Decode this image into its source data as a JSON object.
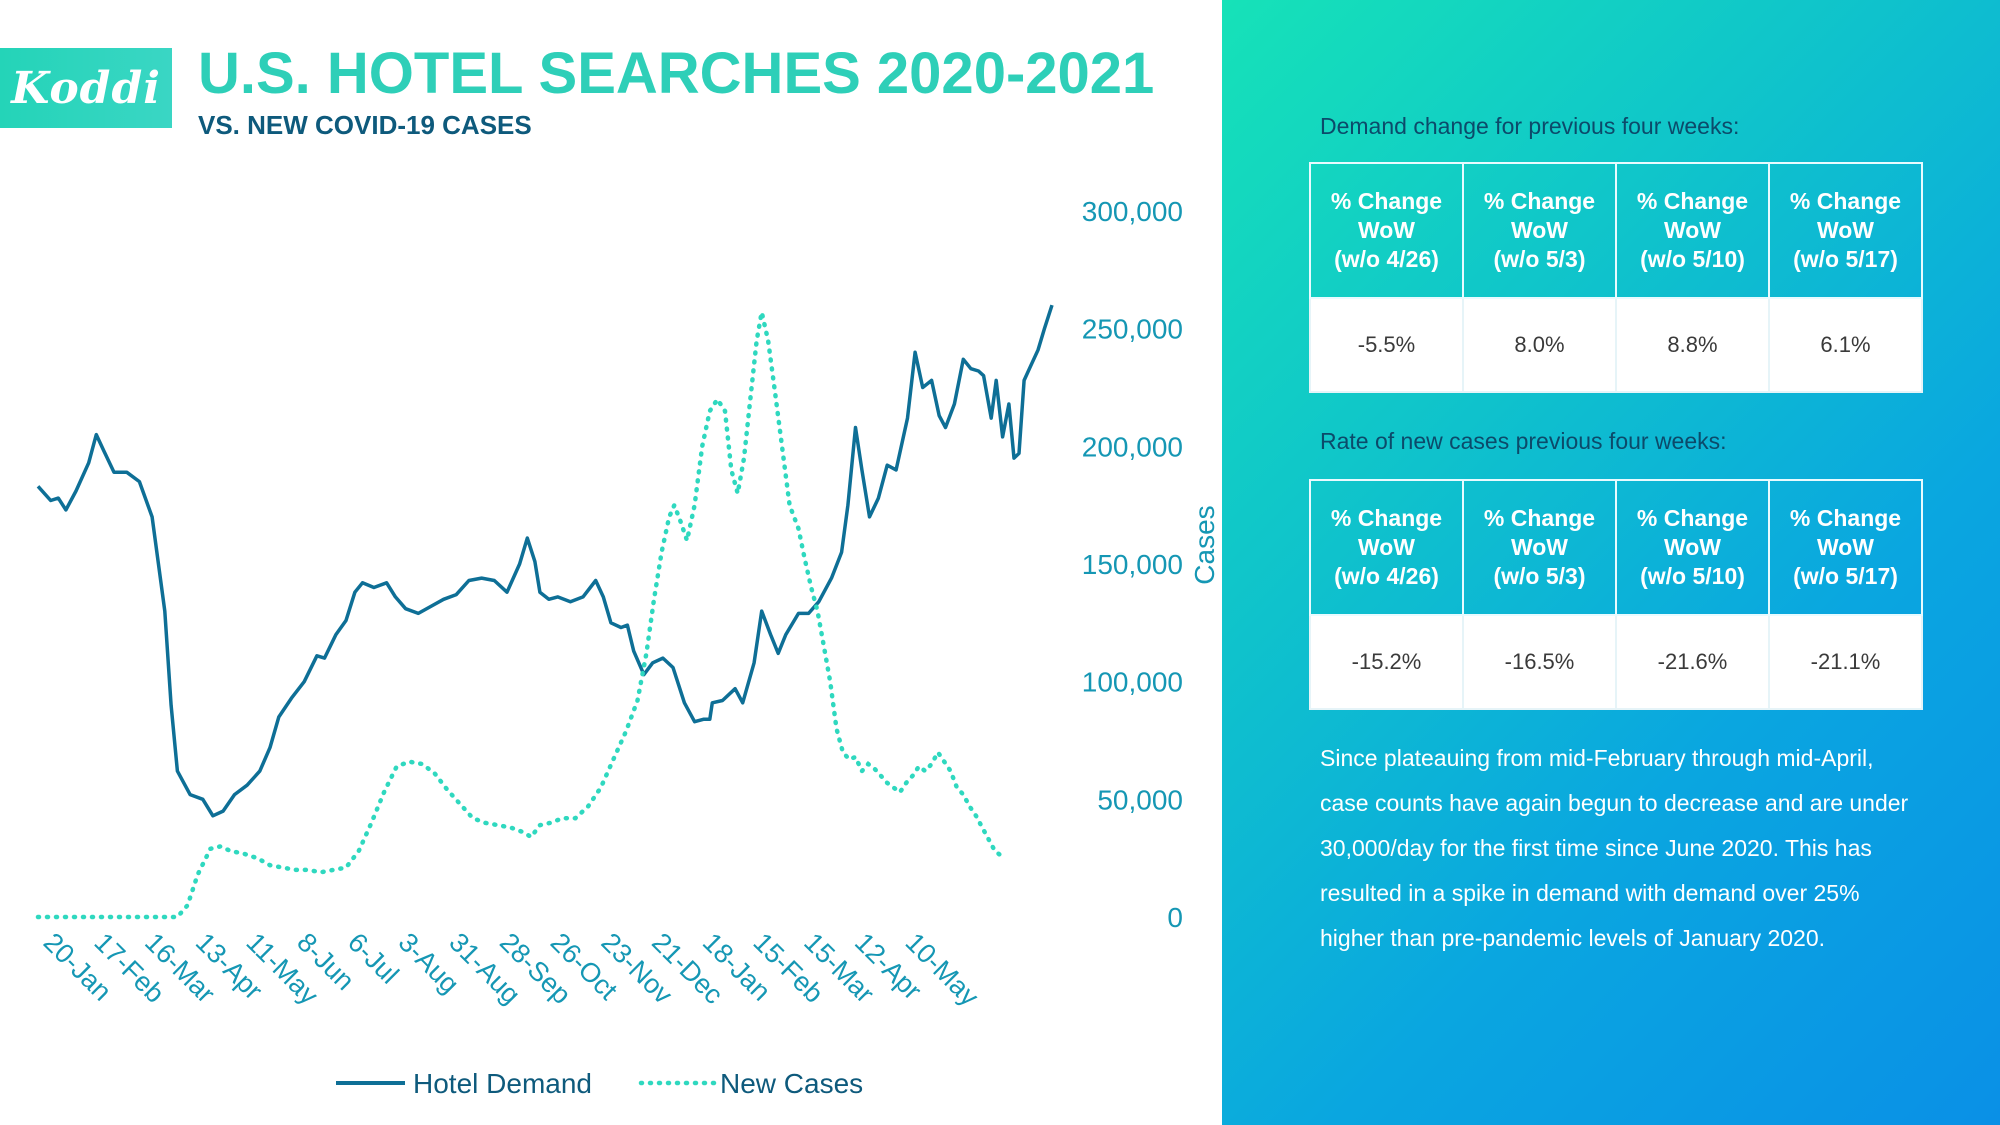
{
  "logo": {
    "text": "Koddi"
  },
  "header": {
    "title": "U.S. HOTEL SEARCHES 2020-2021",
    "subtitle": "VS. NEW COVID-19 CASES"
  },
  "colors": {
    "demand": "#0e6f96",
    "cases": "#2fd8bf",
    "title": "#2ecfb8",
    "axis_text": "#1597b4"
  },
  "chart_data": {
    "type": "line",
    "title": "U.S. HOTEL SEARCHES 2020-2021",
    "subtitle": "VS. NEW COVID-19 CASES",
    "xlabel": "",
    "ylabel": "Cases",
    "ylim": [
      0,
      300000
    ],
    "yticks": [
      0,
      50000,
      100000,
      150000,
      200000,
      250000,
      300000
    ],
    "ytick_labels": [
      "0",
      "50,000",
      "100,000",
      "150,000",
      "200,000",
      "250,000",
      "300,000"
    ],
    "x_tick_labels": [
      "20-Jan",
      "17-Feb",
      "16-Mar",
      "13-Apr",
      "11-May",
      "8-Jun",
      "6-Jul",
      "3-Aug",
      "31-Aug",
      "28-Sep",
      "26-Oct",
      "23-Nov",
      "21-Dec",
      "18-Jan",
      "15-Feb",
      "15-Mar",
      "12-Apr",
      "10-May"
    ],
    "x_range_weeks": [
      0,
      69
    ],
    "legend_position": "bottom",
    "grid": false,
    "series": [
      {
        "name": "Hotel Demand",
        "style": "solid",
        "points": [
          [
            0,
            183000
          ],
          [
            1,
            177000
          ],
          [
            1.6,
            178000
          ],
          [
            2.2,
            173000
          ],
          [
            3,
            181000
          ],
          [
            4,
            193000
          ],
          [
            4.6,
            205000
          ],
          [
            5.2,
            198000
          ],
          [
            6,
            189000
          ],
          [
            7,
            189000
          ],
          [
            8,
            185000
          ],
          [
            9,
            170000
          ],
          [
            10,
            130000
          ],
          [
            10.5,
            90000
          ],
          [
            11,
            62000
          ],
          [
            12,
            52000
          ],
          [
            13,
            50000
          ],
          [
            13.8,
            43000
          ],
          [
            14.6,
            45000
          ],
          [
            15.5,
            52000
          ],
          [
            16.5,
            56000
          ],
          [
            17.5,
            62000
          ],
          [
            18.3,
            72000
          ],
          [
            19,
            85000
          ],
          [
            20,
            93000
          ],
          [
            21,
            100000
          ],
          [
            22,
            111000
          ],
          [
            22.6,
            110000
          ],
          [
            23.5,
            120000
          ],
          [
            24.3,
            126000
          ],
          [
            25,
            138000
          ],
          [
            25.6,
            142000
          ],
          [
            26.5,
            140000
          ],
          [
            27.5,
            142000
          ],
          [
            28.2,
            136000
          ],
          [
            29,
            131000
          ],
          [
            30,
            129000
          ],
          [
            31,
            132000
          ],
          [
            32,
            135000
          ],
          [
            33,
            137000
          ],
          [
            34,
            143000
          ],
          [
            35,
            144000
          ],
          [
            36,
            143000
          ],
          [
            37,
            138000
          ],
          [
            38,
            150000
          ],
          [
            38.6,
            161000
          ],
          [
            39.2,
            151000
          ],
          [
            39.6,
            138000
          ],
          [
            40.3,
            135000
          ],
          [
            41,
            136000
          ],
          [
            42,
            134000
          ],
          [
            43,
            136000
          ],
          [
            44,
            143000
          ],
          [
            44.6,
            136000
          ],
          [
            45.2,
            125000
          ],
          [
            46,
            123000
          ],
          [
            46.5,
            124000
          ],
          [
            47,
            113000
          ],
          [
            47.8,
            103000
          ],
          [
            48.5,
            108000
          ],
          [
            49.3,
            110000
          ],
          [
            50.1,
            106000
          ],
          [
            51,
            91000
          ],
          [
            51.8,
            83000
          ],
          [
            52.5,
            84000
          ],
          [
            53,
            84000
          ],
          [
            53.2,
            91000
          ],
          [
            54,
            92000
          ],
          [
            55,
            97000
          ],
          [
            55.6,
            91000
          ],
          [
            56.5,
            108000
          ],
          [
            57.1,
            130000
          ],
          [
            57.8,
            120000
          ],
          [
            58.4,
            112000
          ],
          [
            59,
            120000
          ],
          [
            60,
            129000
          ],
          [
            60.8,
            129000
          ],
          [
            61.6,
            134000
          ],
          [
            62.6,
            144000
          ],
          [
            63.4,
            155000
          ],
          [
            63.9,
            175000
          ],
          [
            64.5,
            208000
          ],
          [
            65,
            190000
          ],
          [
            65.6,
            170000
          ],
          [
            66.3,
            178000
          ],
          [
            67,
            192000
          ],
          [
            67.7,
            190000
          ],
          [
            68.6,
            212000
          ],
          [
            69.2,
            240000
          ],
          [
            69.8,
            225000
          ],
          [
            70.5,
            228000
          ],
          [
            71.1,
            213000
          ],
          [
            71.6,
            208000
          ],
          [
            72.3,
            218000
          ],
          [
            73,
            237000
          ],
          [
            73.6,
            233000
          ],
          [
            74.2,
            232000
          ],
          [
            74.6,
            230000
          ],
          [
            75.2,
            212000
          ],
          [
            75.6,
            228000
          ],
          [
            76.1,
            204000
          ],
          [
            76.6,
            218000
          ],
          [
            77,
            195000
          ],
          [
            77.4,
            197000
          ],
          [
            77.8,
            228000
          ],
          [
            78.3,
            234000
          ],
          [
            78.9,
            241000
          ],
          [
            79.4,
            250000
          ],
          [
            80,
            260000
          ]
        ]
      },
      {
        "name": "New Cases",
        "style": "dotted",
        "points": [
          [
            0,
            0
          ],
          [
            3,
            0
          ],
          [
            6,
            0
          ],
          [
            9,
            0
          ],
          [
            11,
            0
          ],
          [
            11.8,
            5000
          ],
          [
            12.6,
            18000
          ],
          [
            13.6,
            29000
          ],
          [
            14.4,
            30000
          ],
          [
            15.2,
            28000
          ],
          [
            16.2,
            27000
          ],
          [
            17.3,
            25000
          ],
          [
            18.3,
            22000
          ],
          [
            19.3,
            21000
          ],
          [
            20.3,
            20000
          ],
          [
            21.3,
            20000
          ],
          [
            22.3,
            19000
          ],
          [
            23.3,
            20000
          ],
          [
            24.3,
            21000
          ],
          [
            25.3,
            28000
          ],
          [
            26.3,
            40000
          ],
          [
            27.3,
            53000
          ],
          [
            28.3,
            64000
          ],
          [
            29.3,
            66000
          ],
          [
            30.3,
            65000
          ],
          [
            31.3,
            61000
          ],
          [
            32.3,
            54000
          ],
          [
            33.3,
            48000
          ],
          [
            34.3,
            42000
          ],
          [
            35.3,
            40000
          ],
          [
            36.3,
            39000
          ],
          [
            37.3,
            38000
          ],
          [
            38.3,
            36000
          ],
          [
            38.9,
            34000
          ],
          [
            39.6,
            39000
          ],
          [
            40.4,
            40000
          ],
          [
            41.4,
            42000
          ],
          [
            42.4,
            42000
          ],
          [
            43.4,
            47000
          ],
          [
            44.4,
            55000
          ],
          [
            45.4,
            67000
          ],
          [
            46.4,
            79000
          ],
          [
            47.3,
            92000
          ],
          [
            48,
            112000
          ],
          [
            48.6,
            135000
          ],
          [
            49.2,
            155000
          ],
          [
            49.8,
            170000
          ],
          [
            50.2,
            175000
          ],
          [
            50.7,
            168000
          ],
          [
            51.2,
            160000
          ],
          [
            51.8,
            175000
          ],
          [
            52.4,
            200000
          ],
          [
            53,
            215000
          ],
          [
            53.6,
            220000
          ],
          [
            54.2,
            215000
          ],
          [
            54.7,
            190000
          ],
          [
            55.2,
            180000
          ],
          [
            55.7,
            195000
          ],
          [
            56.2,
            220000
          ],
          [
            56.7,
            245000
          ],
          [
            57.1,
            257000
          ],
          [
            57.6,
            245000
          ],
          [
            58.1,
            225000
          ],
          [
            58.7,
            200000
          ],
          [
            59.3,
            175000
          ],
          [
            60,
            165000
          ],
          [
            60.5,
            152000
          ],
          [
            61,
            140000
          ],
          [
            61.5,
            130000
          ],
          [
            62,
            115000
          ],
          [
            62.5,
            100000
          ],
          [
            63,
            80000
          ],
          [
            63.5,
            70000
          ],
          [
            64,
            67000
          ],
          [
            64.5,
            68000
          ],
          [
            65,
            62000
          ],
          [
            65.5,
            65000
          ],
          [
            66,
            63000
          ],
          [
            66.5,
            60000
          ],
          [
            67,
            57000
          ],
          [
            67.5,
            55000
          ],
          [
            68,
            53000
          ],
          [
            68.5,
            57000
          ],
          [
            69,
            60000
          ],
          [
            69.5,
            64000
          ],
          [
            70,
            62000
          ],
          [
            70.5,
            65000
          ],
          [
            71,
            70000
          ],
          [
            71.5,
            66000
          ],
          [
            72,
            62000
          ],
          [
            72.5,
            55000
          ],
          [
            73,
            52000
          ],
          [
            73.5,
            47000
          ],
          [
            74,
            43000
          ],
          [
            74.5,
            38000
          ],
          [
            75,
            33000
          ],
          [
            75.5,
            28000
          ],
          [
            76,
            26000
          ]
        ]
      }
    ]
  },
  "legend": [
    {
      "label": "Hotel Demand"
    },
    {
      "label": "New Cases"
    }
  ],
  "panel": {
    "demand_label": "Demand change for previous four weeks:",
    "cases_label": "Rate of new cases previous four weeks:",
    "column_headers": [
      {
        "l1": "% Change",
        "l2": "WoW",
        "l3": "(w/o 4/26)"
      },
      {
        "l1": "% Change",
        "l2": "WoW",
        "l3": "(w/o 5/3)"
      },
      {
        "l1": "% Change",
        "l2": "WoW",
        "l3": "(w/o 5/10)"
      },
      {
        "l1": "% Change",
        "l2": "WoW",
        "l3": "(w/o 5/17)"
      }
    ],
    "demand_values": [
      "-5.5%",
      "8.0%",
      "8.8%",
      "6.1%"
    ],
    "cases_values": [
      "-15.2%",
      "-16.5%",
      "-21.6%",
      "-21.1%"
    ],
    "paragraph": "Since plateauing from mid-February through mid-April, case counts have again begun to decrease and are under 30,000/day for the first time since June 2020. This has resulted in a spike in demand with demand over 25% higher than pre-pandemic levels of January 2020."
  }
}
